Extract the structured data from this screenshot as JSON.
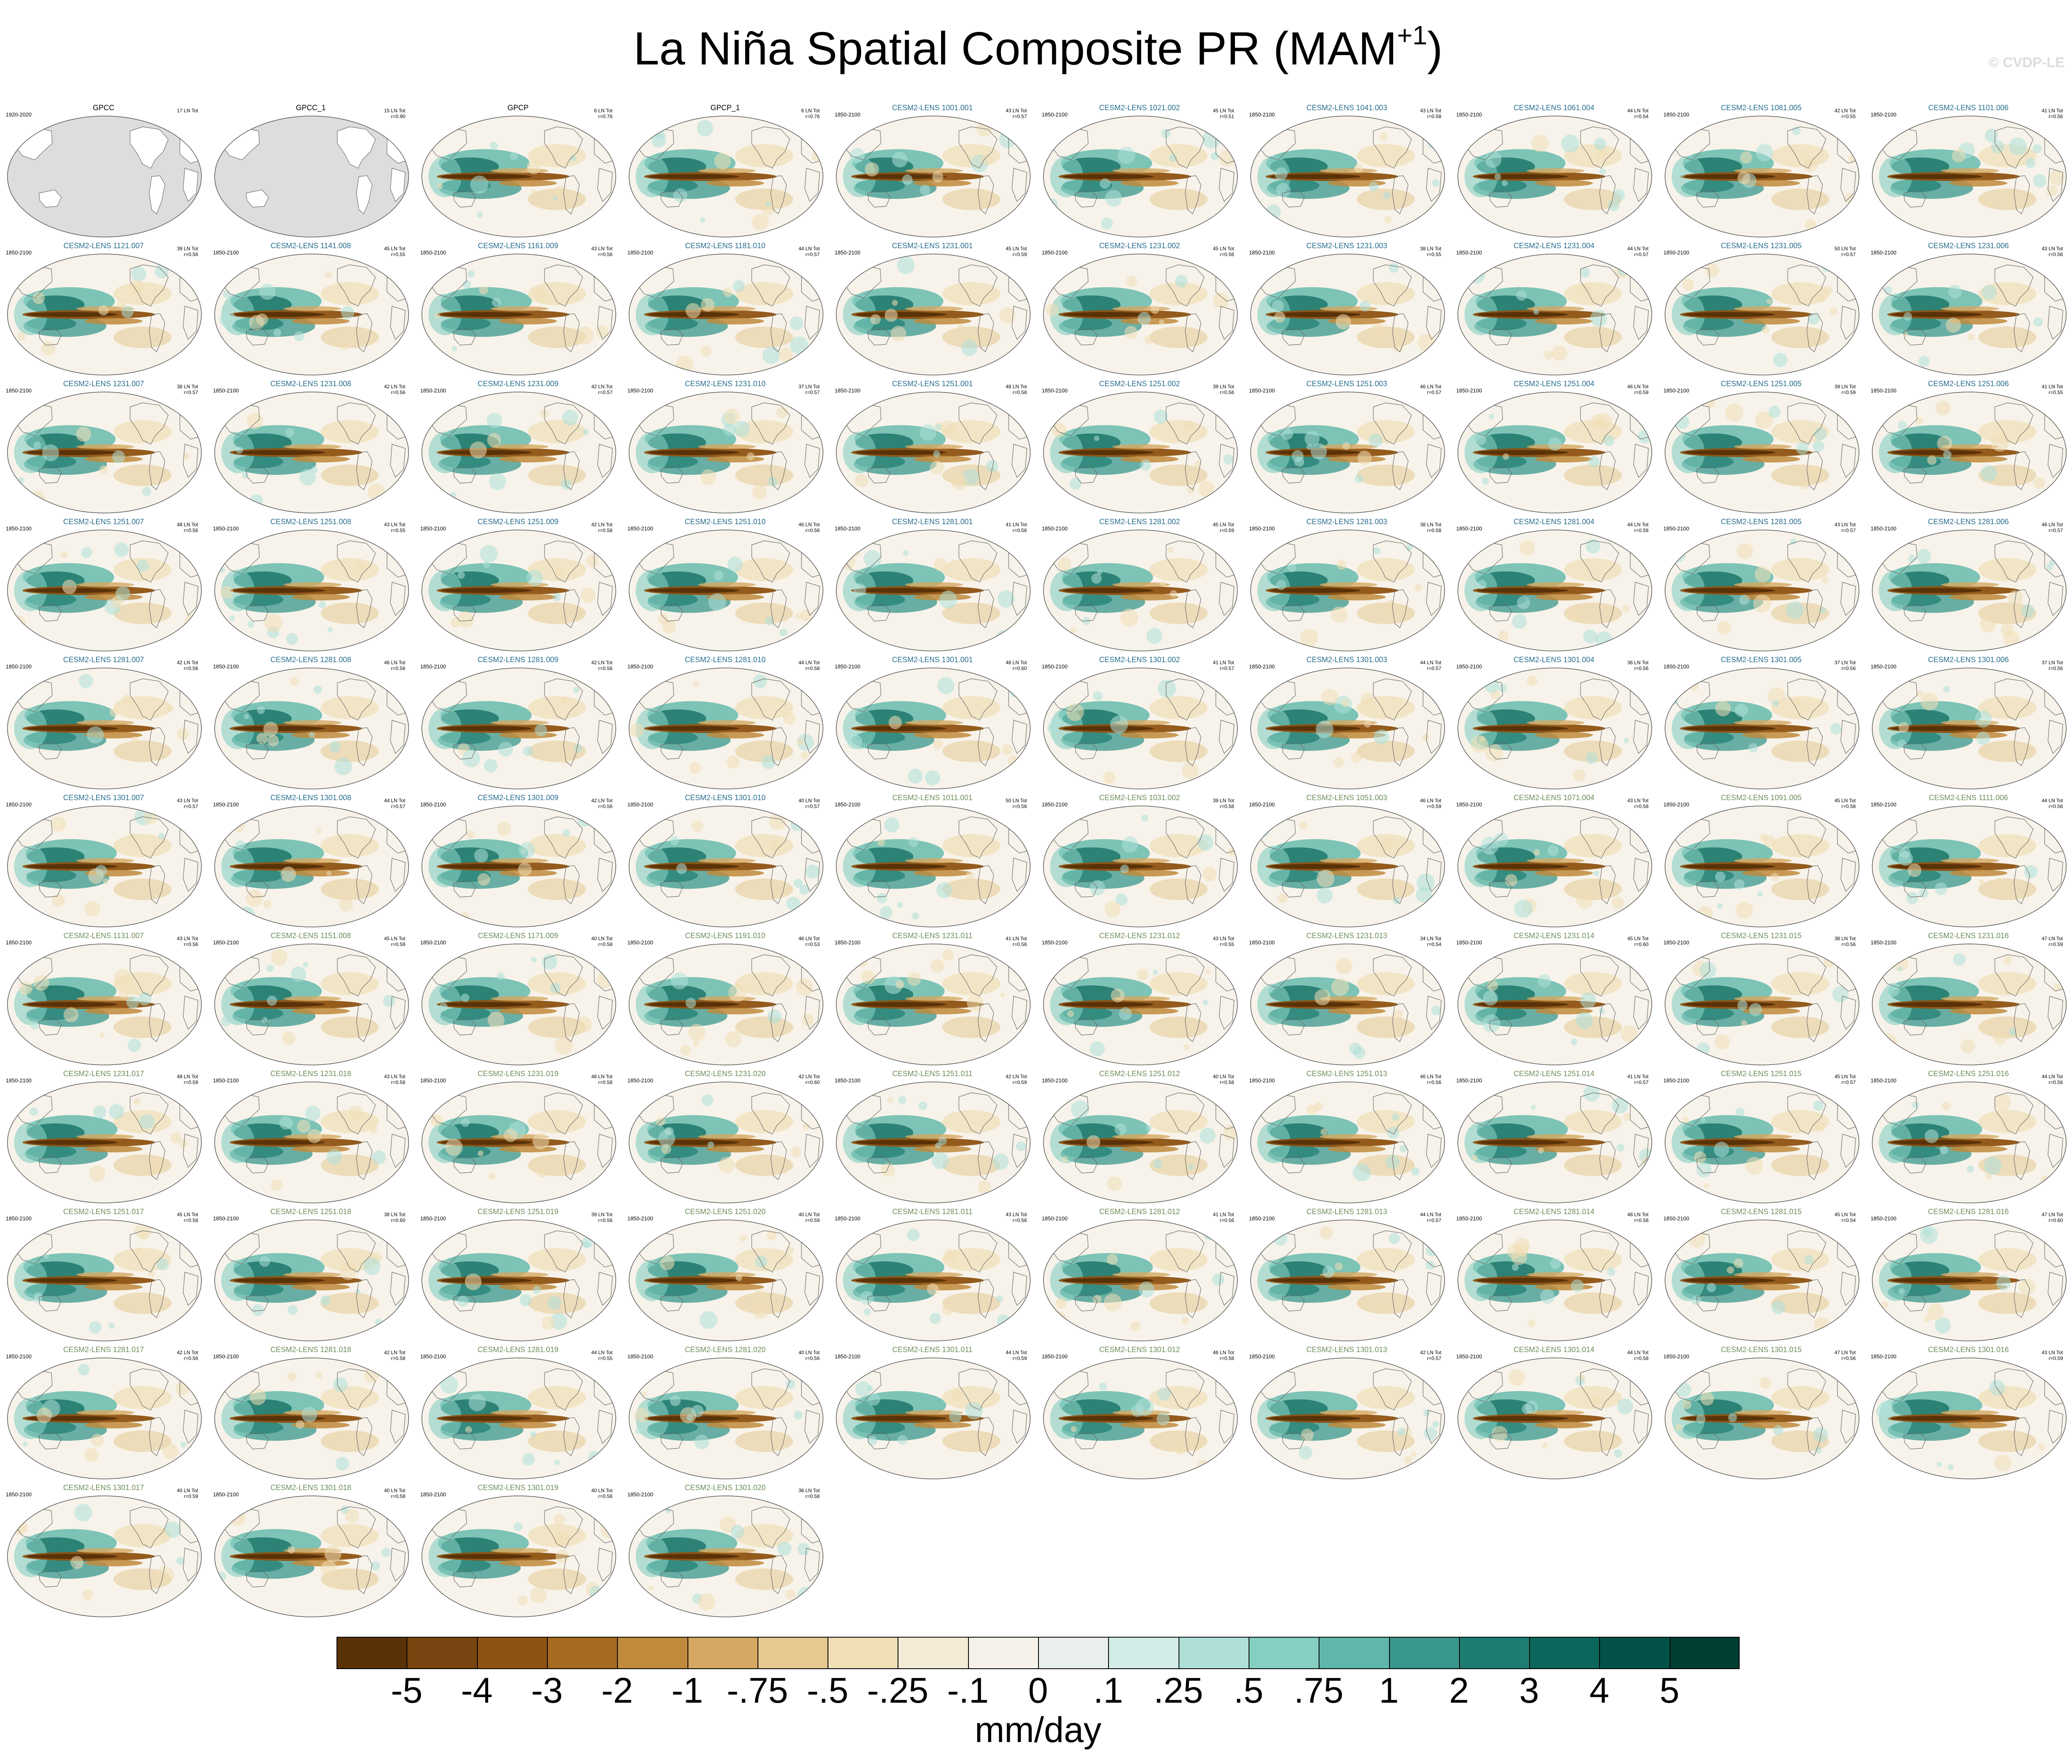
{
  "title": {
    "main": "La Niña Spatial Composite PR (MAM",
    "sup": "+1",
    "close": ")"
  },
  "watermark": "© CVDP-LE",
  "units": "mm/day",
  "colorbar": {
    "labels": [
      "-5",
      "-4",
      "-3",
      "-2",
      "-1",
      "-.75",
      "-.5",
      "-.25",
      "-.1",
      "0",
      ".1",
      ".25",
      ".5",
      ".75",
      "1",
      "2",
      "3",
      "4",
      "5"
    ],
    "colors": [
      "#5a3208",
      "#784410",
      "#8e5212",
      "#a66a20",
      "#bf8a3c",
      "#d4a862",
      "#e6c891",
      "#f0deb6",
      "#f4ebd6",
      "#f6f2ea",
      "#e9efed",
      "#d2ebe7",
      "#aee0d8",
      "#85cfc2",
      "#5eb7a9",
      "#3a978c",
      "#1e7d72",
      "#0b665b",
      "#035247",
      "#003d33"
    ]
  },
  "panels": [
    {
      "name": "GPCC",
      "years": "1920-2020",
      "lines": [
        "17 LN Tot"
      ],
      "group": "obs",
      "empty": true
    },
    {
      "name": "GPCC_1",
      "years": "",
      "lines": [
        "15 LN Tot",
        "r=0.90"
      ],
      "group": "obs",
      "empty": true
    },
    {
      "name": "GPCP",
      "years": "",
      "lines": [
        "6 LN Tot",
        "r=0.76"
      ],
      "group": "obs",
      "empty": false
    },
    {
      "name": "GPCP_1",
      "years": "",
      "lines": [
        "6 LN Tot",
        "r=0.76"
      ],
      "group": "obs",
      "empty": false
    },
    {
      "name": "CESM2-LENS 1001.001",
      "years": "1850-2100",
      "lines": [
        "43 LN Tot",
        "r=0.57"
      ],
      "group": "a"
    },
    {
      "name": "CESM2-LENS 1021.002",
      "years": "1850-2100",
      "lines": [
        "45 LN Tot",
        "r=0.51"
      ],
      "group": "a"
    },
    {
      "name": "CESM2-LENS 1041.003",
      "years": "1850-2100",
      "lines": [
        "43 LN Tot",
        "r=0.58"
      ],
      "group": "a"
    },
    {
      "name": "CESM2-LENS 1061.004",
      "years": "1850-2100",
      "lines": [
        "44 LN Tot",
        "r=0.54"
      ],
      "group": "a"
    },
    {
      "name": "CESM2-LENS 1081.005",
      "years": "1850-2100",
      "lines": [
        "42 LN Tot",
        "r=0.55"
      ],
      "group": "a"
    },
    {
      "name": "CESM2-LENS 1101.006",
      "years": "1850-2100",
      "lines": [
        "41 LN Tot",
        "r=0.56"
      ],
      "group": "a"
    },
    {
      "name": "CESM2-LENS 1121.007",
      "years": "1850-2100",
      "lines": [
        "39 LN Tot",
        "r=0.56"
      ],
      "group": "a"
    },
    {
      "name": "CESM2-LENS 1141.008",
      "years": "1850-2100",
      "lines": [
        "45 LN Tot",
        "r=0.55"
      ],
      "group": "a"
    },
    {
      "name": "CESM2-LENS 1161.009",
      "years": "1850-2100",
      "lines": [
        "43 LN Tot",
        "r=0.56"
      ],
      "group": "a"
    },
    {
      "name": "CESM2-LENS 1181.010",
      "years": "1850-2100",
      "lines": [
        "44 LN Tot",
        "r=0.57"
      ],
      "group": "a"
    },
    {
      "name": "CESM2-LENS 1231.001",
      "years": "1850-2100",
      "lines": [
        "45 LN Tot",
        "r=0.59"
      ],
      "group": "a"
    },
    {
      "name": "CESM2-LENS 1231.002",
      "years": "1850-2100",
      "lines": [
        "45 LN Tot",
        "r=0.56"
      ],
      "group": "a"
    },
    {
      "name": "CESM2-LENS 1231.003",
      "years": "1850-2100",
      "lines": [
        "38 LN Tot",
        "r=0.55"
      ],
      "group": "a"
    },
    {
      "name": "CESM2-LENS 1231.004",
      "years": "1850-2100",
      "lines": [
        "44 LN Tot",
        "r=0.57"
      ],
      "group": "a"
    },
    {
      "name": "CESM2-LENS 1231.005",
      "years": "1850-2100",
      "lines": [
        "50 LN Tot",
        "r=0.57"
      ],
      "group": "a"
    },
    {
      "name": "CESM2-LENS 1231.006",
      "years": "1850-2100",
      "lines": [
        "43 LN Tot",
        "r=0.56"
      ],
      "group": "a"
    },
    {
      "name": "CESM2-LENS 1231.007",
      "years": "1850-2100",
      "lines": [
        "38 LN Tot",
        "r=0.57"
      ],
      "group": "a"
    },
    {
      "name": "CESM2-LENS 1231.008",
      "years": "1850-2100",
      "lines": [
        "42 LN Tot",
        "r=0.56"
      ],
      "group": "a"
    },
    {
      "name": "CESM2-LENS 1231.009",
      "years": "1850-2100",
      "lines": [
        "42 LN Tot",
        "r=0.57"
      ],
      "group": "a"
    },
    {
      "name": "CESM2-LENS 1231.010",
      "years": "1850-2100",
      "lines": [
        "37 LN Tot",
        "r=0.57"
      ],
      "group": "a"
    },
    {
      "name": "CESM2-LENS 1251.001",
      "years": "1850-2100",
      "lines": [
        "48 LN Tot",
        "r=0.58"
      ],
      "group": "a"
    },
    {
      "name": "CESM2-LENS 1251.002",
      "years": "1850-2100",
      "lines": [
        "39 LN Tot",
        "r=0.56"
      ],
      "group": "a"
    },
    {
      "name": "CESM2-LENS 1251.003",
      "years": "1850-2100",
      "lines": [
        "46 LN Tot",
        "r=0.57"
      ],
      "group": "a"
    },
    {
      "name": "CESM2-LENS 1251.004",
      "years": "1850-2100",
      "lines": [
        "46 LN Tot",
        "r=0.59"
      ],
      "group": "a"
    },
    {
      "name": "CESM2-LENS 1251.005",
      "years": "1850-2100",
      "lines": [
        "39 LN Tot",
        "r=0.59"
      ],
      "group": "a"
    },
    {
      "name": "CESM2-LENS 1251.006",
      "years": "1850-2100",
      "lines": [
        "41 LN Tot",
        "r=0.55"
      ],
      "group": "a"
    },
    {
      "name": "CESM2-LENS 1251.007",
      "years": "1850-2100",
      "lines": [
        "48 LN Tot",
        "r=0.56"
      ],
      "group": "a"
    },
    {
      "name": "CESM2-LENS 1251.008",
      "years": "1850-2100",
      "lines": [
        "43 LN Tot",
        "r=0.55"
      ],
      "group": "a"
    },
    {
      "name": "CESM2-LENS 1251.009",
      "years": "1850-2100",
      "lines": [
        "42 LN Tot",
        "r=0.58"
      ],
      "group": "a"
    },
    {
      "name": "CESM2-LENS 1251.010",
      "years": "1850-2100",
      "lines": [
        "46 LN Tot",
        "r=0.56"
      ],
      "group": "a"
    },
    {
      "name": "CESM2-LENS 1281.001",
      "years": "1850-2100",
      "lines": [
        "41 LN Tot",
        "r=0.56"
      ],
      "group": "a"
    },
    {
      "name": "CESM2-LENS 1281.002",
      "years": "1850-2100",
      "lines": [
        "45 LN Tot",
        "r=0.59"
      ],
      "group": "a"
    },
    {
      "name": "CESM2-LENS 1281.003",
      "years": "1850-2100",
      "lines": [
        "38 LN Tot",
        "r=0.58"
      ],
      "group": "a"
    },
    {
      "name": "CESM2-LENS 1281.004",
      "years": "1850-2100",
      "lines": [
        "44 LN Tot",
        "r=0.58"
      ],
      "group": "a"
    },
    {
      "name": "CESM2-LENS 1281.005",
      "years": "1850-2100",
      "lines": [
        "43 LN Tot",
        "r=0.57"
      ],
      "group": "a"
    },
    {
      "name": "CESM2-LENS 1281.006",
      "years": "1850-2100",
      "lines": [
        "46 LN Tot",
        "r=0.57"
      ],
      "group": "a"
    },
    {
      "name": "CESM2-LENS 1281.007",
      "years": "1850-2100",
      "lines": [
        "42 LN Tot",
        "r=0.56"
      ],
      "group": "a"
    },
    {
      "name": "CESM2-LENS 1281.008",
      "years": "1850-2100",
      "lines": [
        "46 LN Tot",
        "r=0.56"
      ],
      "group": "a"
    },
    {
      "name": "CESM2-LENS 1281.009",
      "years": "1850-2100",
      "lines": [
        "42 LN Tot",
        "r=0.56"
      ],
      "group": "a"
    },
    {
      "name": "CESM2-LENS 1281.010",
      "years": "1850-2100",
      "lines": [
        "44 LN Tot",
        "r=0.58"
      ],
      "group": "a"
    },
    {
      "name": "CESM2-LENS 1301.001",
      "years": "1850-2100",
      "lines": [
        "48 LN Tot",
        "r=0.60"
      ],
      "group": "a"
    },
    {
      "name": "CESM2-LENS 1301.002",
      "years": "1850-2100",
      "lines": [
        "41 LN Tot",
        "r=0.57"
      ],
      "group": "a"
    },
    {
      "name": "CESM2-LENS 1301.003",
      "years": "1850-2100",
      "lines": [
        "44 LN Tot",
        "r=0.57"
      ],
      "group": "a"
    },
    {
      "name": "CESM2-LENS 1301.004",
      "years": "1850-2100",
      "lines": [
        "36 LN Tot",
        "r=0.56"
      ],
      "group": "a"
    },
    {
      "name": "CESM2-LENS 1301.005",
      "years": "1850-2100",
      "lines": [
        "37 LN Tot",
        "r=0.56"
      ],
      "group": "a"
    },
    {
      "name": "CESM2-LENS 1301.006",
      "years": "1850-2100",
      "lines": [
        "37 LN Tot",
        "r=0.56"
      ],
      "group": "a"
    },
    {
      "name": "CESM2-LENS 1301.007",
      "years": "1850-2100",
      "lines": [
        "43 LN Tot",
        "r=0.57"
      ],
      "group": "a"
    },
    {
      "name": "CESM2-LENS 1301.008",
      "years": "1850-2100",
      "lines": [
        "44 LN Tot",
        "r=0.57"
      ],
      "group": "a"
    },
    {
      "name": "CESM2-LENS 1301.009",
      "years": "1850-2100",
      "lines": [
        "42 LN Tot",
        "r=0.56"
      ],
      "group": "a"
    },
    {
      "name": "CESM2-LENS 1301.010",
      "years": "1850-2100",
      "lines": [
        "40 LN Tot",
        "r=0.57"
      ],
      "group": "a"
    },
    {
      "name": "CESM2-LENS 1011.001",
      "years": "1850-2100",
      "lines": [
        "50 LN Tot",
        "r=0.56"
      ],
      "group": "b"
    },
    {
      "name": "CESM2-LENS 1031.002",
      "years": "1850-2100",
      "lines": [
        "39 LN Tot",
        "r=0.58"
      ],
      "group": "b"
    },
    {
      "name": "CESM2-LENS 1051.003",
      "years": "1850-2100",
      "lines": [
        "46 LN Tot",
        "r=0.59"
      ],
      "group": "b"
    },
    {
      "name": "CESM2-LENS 1071.004",
      "years": "1850-2100",
      "lines": [
        "43 LN Tot",
        "r=0.58"
      ],
      "group": "b"
    },
    {
      "name": "CESM2-LENS 1091.005",
      "years": "1850-2100",
      "lines": [
        "45 LN Tot",
        "r=0.58"
      ],
      "group": "b"
    },
    {
      "name": "CESM2-LENS 1111.006",
      "years": "1850-2100",
      "lines": [
        "44 LN Tot",
        "r=0.56"
      ],
      "group": "b"
    },
    {
      "name": "CESM2-LENS 1131.007",
      "years": "1850-2100",
      "lines": [
        "43 LN Tot",
        "r=0.56"
      ],
      "group": "b"
    },
    {
      "name": "CESM2-LENS 1151.008",
      "years": "1850-2100",
      "lines": [
        "45 LN Tot",
        "r=0.59"
      ],
      "group": "b"
    },
    {
      "name": "CESM2-LENS 1171.009",
      "years": "1850-2100",
      "lines": [
        "40 LN Tot",
        "r=0.58"
      ],
      "group": "b"
    },
    {
      "name": "CESM2-LENS 1191.010",
      "years": "1850-2100",
      "lines": [
        "46 LN Tot",
        "r=0.53"
      ],
      "group": "b"
    },
    {
      "name": "CESM2-LENS 1231.011",
      "years": "1850-2100",
      "lines": [
        "41 LN Tot",
        "r=0.56"
      ],
      "group": "b"
    },
    {
      "name": "CESM2-LENS 1231.012",
      "years": "1850-2100",
      "lines": [
        "43 LN Tot",
        "r=0.55"
      ],
      "group": "b"
    },
    {
      "name": "CESM2-LENS 1231.013",
      "years": "1850-2100",
      "lines": [
        "34 LN Tot",
        "r=0.54"
      ],
      "group": "b"
    },
    {
      "name": "CESM2-LENS 1231.014",
      "years": "1850-2100",
      "lines": [
        "45 LN Tot",
        "r=0.60"
      ],
      "group": "b"
    },
    {
      "name": "CESM2-LENS 1231.015",
      "years": "1850-2100",
      "lines": [
        "38 LN Tot",
        "r=0.56"
      ],
      "group": "b"
    },
    {
      "name": "CESM2-LENS 1231.016",
      "years": "1850-2100",
      "lines": [
        "47 LN Tot",
        "r=0.59"
      ],
      "group": "b"
    },
    {
      "name": "CESM2-LENS 1231.017",
      "years": "1850-2100",
      "lines": [
        "48 LN Tot",
        "r=0.59"
      ],
      "group": "b"
    },
    {
      "name": "CESM2-LENS 1231.018",
      "years": "1850-2100",
      "lines": [
        "43 LN Tot",
        "r=0.58"
      ],
      "group": "b"
    },
    {
      "name": "CESM2-LENS 1231.019",
      "years": "1850-2100",
      "lines": [
        "48 LN Tot",
        "r=0.58"
      ],
      "group": "b"
    },
    {
      "name": "CESM2-LENS 1231.020",
      "years": "1850-2100",
      "lines": [
        "42 LN Tot",
        "r=0.60"
      ],
      "group": "b"
    },
    {
      "name": "CESM2-LENS 1251.011",
      "years": "1850-2100",
      "lines": [
        "42 LN Tot",
        "r=0.59"
      ],
      "group": "b"
    },
    {
      "name": "CESM2-LENS 1251.012",
      "years": "1850-2100",
      "lines": [
        "40 LN Tot",
        "r=0.58"
      ],
      "group": "b"
    },
    {
      "name": "CESM2-LENS 1251.013",
      "years": "1850-2100",
      "lines": [
        "46 LN Tot",
        "r=0.56"
      ],
      "group": "b"
    },
    {
      "name": "CESM2-LENS 1251.014",
      "years": "1850-2100",
      "lines": [
        "41 LN Tot",
        "r=0.57"
      ],
      "group": "b"
    },
    {
      "name": "CESM2-LENS 1251.015",
      "years": "1850-2100",
      "lines": [
        "45 LN Tot",
        "r=0.57"
      ],
      "group": "b"
    },
    {
      "name": "CESM2-LENS 1251.016",
      "years": "1850-2100",
      "lines": [
        "44 LN Tot",
        "r=0.56"
      ],
      "group": "b"
    },
    {
      "name": "CESM2-LENS 1251.017",
      "years": "1850-2100",
      "lines": [
        "45 LN Tot",
        "r=0.58"
      ],
      "group": "b"
    },
    {
      "name": "CESM2-LENS 1251.018",
      "years": "1850-2100",
      "lines": [
        "38 LN Tot",
        "r=0.60"
      ],
      "group": "b"
    },
    {
      "name": "CESM2-LENS 1251.019",
      "years": "1850-2100",
      "lines": [
        "39 LN Tot",
        "r=0.56"
      ],
      "group": "b"
    },
    {
      "name": "CESM2-LENS 1251.020",
      "years": "1850-2100",
      "lines": [
        "40 LN Tot",
        "r=0.59"
      ],
      "group": "b"
    },
    {
      "name": "CESM2-LENS 1281.011",
      "years": "1850-2100",
      "lines": [
        "43 LN Tot",
        "r=0.56"
      ],
      "group": "b"
    },
    {
      "name": "CESM2-LENS 1281.012",
      "years": "1850-2100",
      "lines": [
        "41 LN Tot",
        "r=0.56"
      ],
      "group": "b"
    },
    {
      "name": "CESM2-LENS 1281.013",
      "years": "1850-2100",
      "lines": [
        "44 LN Tot",
        "r=0.57"
      ],
      "group": "b"
    },
    {
      "name": "CESM2-LENS 1281.014",
      "years": "1850-2100",
      "lines": [
        "48 LN Tot",
        "r=0.58"
      ],
      "group": "b"
    },
    {
      "name": "CESM2-LENS 1281.015",
      "years": "1850-2100",
      "lines": [
        "45 LN Tot",
        "r=0.54"
      ],
      "group": "b"
    },
    {
      "name": "CESM2-LENS 1281.016",
      "years": "1850-2100",
      "lines": [
        "47 LN Tot",
        "r=0.60"
      ],
      "group": "b"
    },
    {
      "name": "CESM2-LENS 1281.017",
      "years": "1850-2100",
      "lines": [
        "42 LN Tot",
        "r=0.56"
      ],
      "group": "b"
    },
    {
      "name": "CESM2-LENS 1281.018",
      "years": "1850-2100",
      "lines": [
        "42 LN Tot",
        "r=0.58"
      ],
      "group": "b"
    },
    {
      "name": "CESM2-LENS 1281.019",
      "years": "1850-2100",
      "lines": [
        "44 LN Tot",
        "r=0.55"
      ],
      "group": "b"
    },
    {
      "name": "CESM2-LENS 1281.020",
      "years": "1850-2100",
      "lines": [
        "40 LN Tot",
        "r=0.56"
      ],
      "group": "b"
    },
    {
      "name": "CESM2-LENS 1301.011",
      "years": "1850-2100",
      "lines": [
        "44 LN Tot",
        "r=0.59"
      ],
      "group": "b"
    },
    {
      "name": "CESM2-LENS 1301.012",
      "years": "1850-2100",
      "lines": [
        "46 LN Tot",
        "r=0.58"
      ],
      "group": "b"
    },
    {
      "name": "CESM2-LENS 1301.013",
      "years": "1850-2100",
      "lines": [
        "42 LN Tot",
        "r=0.57"
      ],
      "group": "b"
    },
    {
      "name": "CESM2-LENS 1301.014",
      "years": "1850-2100",
      "lines": [
        "44 LN Tot",
        "r=0.58"
      ],
      "group": "b"
    },
    {
      "name": "CESM2-LENS 1301.015",
      "years": "1850-2100",
      "lines": [
        "47 LN Tot",
        "r=0.56"
      ],
      "group": "b"
    },
    {
      "name": "CESM2-LENS 1301.016",
      "years": "1850-2100",
      "lines": [
        "43 LN Tot",
        "r=0.59"
      ],
      "group": "b"
    },
    {
      "name": "CESM2-LENS 1301.017",
      "years": "1850-2100",
      "lines": [
        "40 LN Tot",
        "r=0.59"
      ],
      "group": "b"
    },
    {
      "name": "CESM2-LENS 1301.018",
      "years": "1850-2100",
      "lines": [
        "40 LN Tot",
        "r=0.58"
      ],
      "group": "b"
    },
    {
      "name": "CESM2-LENS 1301.019",
      "years": "1850-2100",
      "lines": [
        "40 LN Tot",
        "r=0.56"
      ],
      "group": "b"
    },
    {
      "name": "CESM2-LENS 1301.020",
      "years": "1850-2100",
      "lines": [
        "36 LN Tot",
        "r=0.58"
      ],
      "group": "b"
    }
  ],
  "colors": {
    "group_a": "#2a6f8f",
    "group_b": "#6f8f5a",
    "obs": "#000000",
    "empty_fill": "#dddddd",
    "ocean_fill": "#f7f3ea",
    "coast": "#6a6a6a"
  }
}
